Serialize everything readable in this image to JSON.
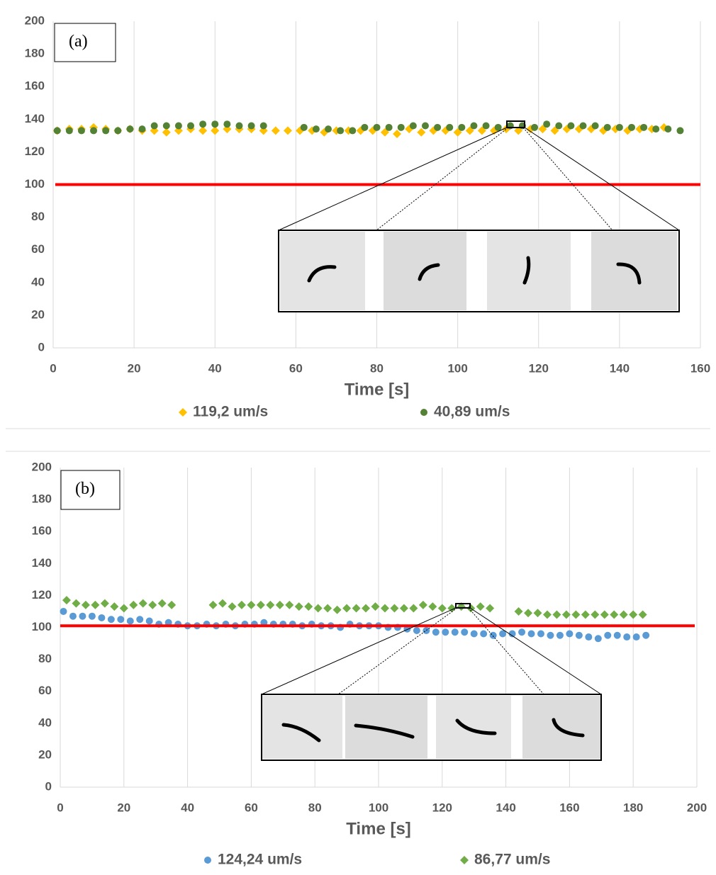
{
  "chart_data": [
    {
      "type": "scatter",
      "panel_label": "(a)",
      "x_label": "Time [s]",
      "xlim": [
        0,
        160
      ],
      "xticks": [
        0,
        20,
        40,
        60,
        80,
        100,
        120,
        140,
        160
      ],
      "ylim": [
        0,
        200
      ],
      "yticks": [
        0,
        20,
        40,
        60,
        80,
        100,
        120,
        140,
        160,
        180,
        200
      ],
      "grid": "x",
      "hline": {
        "value": 100,
        "color": "#ff0000"
      },
      "series": [
        {
          "name": "119,2 um/s",
          "color": "#ffc000",
          "marker": "diamond",
          "x": [
            1,
            4,
            7,
            10,
            13,
            16,
            19,
            22,
            25,
            28,
            31,
            34,
            37,
            40,
            43,
            46,
            49,
            52,
            55,
            58,
            61,
            64,
            67,
            70,
            73,
            76,
            79,
            82,
            85,
            88,
            91,
            94,
            97,
            100,
            103,
            106,
            109,
            112,
            115,
            118,
            121,
            124,
            127,
            130,
            133,
            136,
            139,
            142,
            145,
            148,
            151
          ],
          "values": [
            133,
            134,
            134,
            135,
            134,
            133,
            134,
            133,
            133,
            132,
            133,
            134,
            133,
            133,
            134,
            134,
            134,
            133,
            133,
            133,
            133,
            133,
            132,
            133,
            133,
            133,
            133,
            132,
            131,
            134,
            132,
            133,
            133,
            132,
            133,
            133,
            133,
            134,
            133,
            134,
            134,
            133,
            134,
            134,
            134,
            133,
            134,
            133,
            134,
            134,
            135
          ]
        },
        {
          "name": "40,89 um/s",
          "color": "#548235",
          "marker": "circle",
          "x": [
            1,
            4,
            7,
            10,
            13,
            16,
            19,
            22,
            25,
            28,
            31,
            34,
            37,
            40,
            43,
            46,
            49,
            52,
            62,
            65,
            68,
            71,
            74,
            77,
            80,
            83,
            86,
            89,
            92,
            95,
            98,
            101,
            104,
            107,
            110,
            113,
            116,
            119,
            122,
            125,
            128,
            131,
            134,
            137,
            140,
            143,
            146,
            149,
            152,
            155
          ],
          "values": [
            133,
            133,
            133,
            133,
            133,
            133,
            134,
            134,
            136,
            136,
            136,
            136,
            137,
            137,
            137,
            136,
            136,
            136,
            135,
            134,
            134,
            133,
            133,
            135,
            135,
            135,
            135,
            136,
            136,
            135,
            135,
            135,
            136,
            136,
            135,
            136,
            136,
            135,
            137,
            136,
            136,
            136,
            136,
            135,
            135,
            135,
            135,
            134,
            134,
            133
          ]
        }
      ]
    },
    {
      "type": "scatter",
      "panel_label": "(b)",
      "x_label": "Time [s]",
      "xlim": [
        0,
        200
      ],
      "xticks": [
        0,
        20,
        40,
        60,
        80,
        100,
        120,
        140,
        160,
        180,
        200
      ],
      "ylim": [
        0,
        200
      ],
      "yticks": [
        0,
        20,
        40,
        60,
        80,
        100,
        120,
        140,
        160,
        180,
        200
      ],
      "grid": "x",
      "hline": {
        "value": 101,
        "color": "#ff0000"
      },
      "series": [
        {
          "name": "124,24 um/s",
          "color": "#5b9bd5",
          "marker": "circle",
          "x": [
            1,
            4,
            7,
            10,
            13,
            16,
            19,
            22,
            25,
            28,
            31,
            34,
            37,
            40,
            43,
            46,
            49,
            52,
            55,
            58,
            61,
            64,
            67,
            70,
            73,
            76,
            79,
            82,
            85,
            88,
            91,
            94,
            97,
            100,
            103,
            106,
            109,
            112,
            115,
            118,
            121,
            124,
            127,
            130,
            133,
            136,
            139,
            142,
            145,
            148,
            151,
            154,
            157,
            160,
            163,
            166,
            169,
            172,
            175,
            178,
            181,
            184
          ],
          "values": [
            110,
            107,
            107,
            107,
            106,
            105,
            105,
            104,
            105,
            104,
            102,
            103,
            102,
            101,
            101,
            102,
            101,
            102,
            101,
            102,
            102,
            103,
            102,
            102,
            102,
            101,
            102,
            101,
            101,
            100,
            102,
            101,
            101,
            101,
            100,
            100,
            99,
            98,
            98,
            97,
            97,
            97,
            97,
            96,
            96,
            95,
            96,
            96,
            97,
            96,
            96,
            95,
            95,
            96,
            95,
            94,
            93,
            95,
            95,
            94,
            94,
            95
          ]
        },
        {
          "name": "86,77 um/s",
          "color": "#70ad47",
          "marker": "diamond",
          "x": [
            2,
            5,
            8,
            11,
            14,
            17,
            20,
            23,
            26,
            29,
            32,
            35,
            48,
            51,
            54,
            57,
            60,
            63,
            66,
            69,
            72,
            75,
            78,
            81,
            84,
            87,
            90,
            93,
            96,
            99,
            102,
            105,
            108,
            111,
            114,
            117,
            120,
            123,
            126,
            129,
            132,
            135,
            144,
            147,
            150,
            153,
            156,
            159,
            162,
            165,
            168,
            171,
            174,
            177,
            180,
            183
          ],
          "values": [
            117,
            115,
            114,
            114,
            115,
            113,
            112,
            114,
            115,
            114,
            115,
            114,
            114,
            115,
            113,
            114,
            114,
            114,
            114,
            114,
            114,
            113,
            113,
            112,
            112,
            111,
            112,
            112,
            112,
            113,
            112,
            112,
            112,
            112,
            114,
            113,
            112,
            112,
            113,
            112,
            113,
            112,
            110,
            109,
            109,
            108,
            108,
            108,
            108,
            108,
            108,
            108,
            108,
            108,
            108,
            108
          ]
        }
      ]
    }
  ]
}
